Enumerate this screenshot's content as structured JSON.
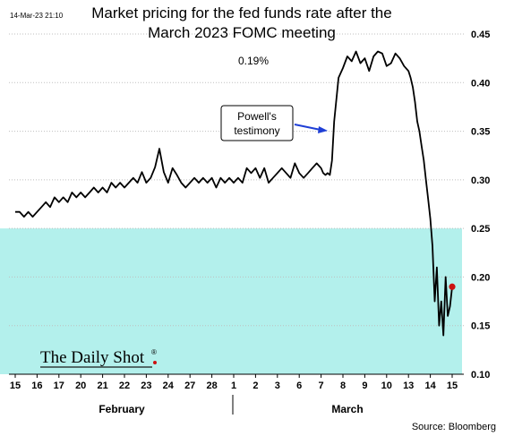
{
  "timestamp": "14-Mar-23 21:10",
  "title_line1": "Market pricing for the fed funds rate after the",
  "title_line2": "March 2023 FOMC meeting",
  "current_value_label": "0.19%",
  "callout_label_line1": "Powell's",
  "callout_label_line2": "testimony",
  "logo_text": "The Daily Shot",
  "logo_mark": "®",
  "source": "Source: Bloomberg",
  "colors": {
    "series": "#000000",
    "band": "#b3f0ec",
    "arrow": "#1f3fd6",
    "last_point": "#cc1111"
  },
  "chart_data": {
    "type": "line",
    "title": "Market pricing for the fed funds rate after the March 2023 FOMC meeting",
    "ylim": [
      0.1,
      0.45
    ],
    "yticks": [
      0.1,
      0.15,
      0.2,
      0.25,
      0.3,
      0.35,
      0.4,
      0.45
    ],
    "ytick_labels": [
      "0.10",
      "0.15",
      "0.20",
      "0.25",
      "0.30",
      "0.35",
      "0.40",
      "0.45"
    ],
    "x_tick_labels": [
      "15",
      "16",
      "17",
      "20",
      "21",
      "22",
      "23",
      "24",
      "27",
      "28",
      "1",
      "2",
      "3",
      "6",
      "7",
      "8",
      "9",
      "10",
      "13",
      "14",
      "15"
    ],
    "month_labels": [
      "February",
      "March"
    ],
    "shaded_band": {
      "from": 0.1,
      "to": 0.25
    },
    "series": [
      {
        "x": [
          0,
          0.2,
          0.4,
          0.6,
          0.8,
          1.0,
          1.2,
          1.4,
          1.6,
          1.8,
          2.0,
          2.2,
          2.4,
          2.6,
          2.8,
          3.0,
          3.2,
          3.4,
          3.6,
          3.8,
          4.0,
          4.2,
          4.4,
          4.6,
          4.8,
          5.0,
          5.2,
          5.4,
          5.6,
          5.8,
          6.0,
          6.2,
          6.4,
          6.6,
          6.8,
          7.0,
          7.2,
          7.4,
          7.6,
          7.8,
          8.0,
          8.2,
          8.4,
          8.6,
          8.8,
          9.0,
          9.2,
          9.4,
          9.6,
          9.8,
          10.0,
          10.2,
          10.4,
          10.6,
          10.8,
          11.0,
          11.2,
          11.4,
          11.6,
          11.8,
          12.0,
          12.2,
          12.4,
          12.6,
          12.8,
          13.0,
          13.2,
          13.4,
          13.6,
          13.8,
          14.0,
          14.1,
          14.2,
          14.3,
          14.4,
          14.5,
          14.6,
          14.8,
          15.0,
          15.2,
          15.4,
          15.6,
          15.8,
          16.0,
          16.2,
          16.4,
          16.6,
          16.8,
          17.0,
          17.2,
          17.4,
          17.6,
          17.8,
          18.0,
          18.1,
          18.2,
          18.3,
          18.4,
          18.5,
          18.6,
          18.7,
          18.8,
          18.9,
          19.0,
          19.1,
          19.2,
          19.3,
          19.4,
          19.5,
          19.6,
          19.7,
          19.8,
          19.9,
          20.0
        ],
        "y": [
          0.267,
          0.267,
          0.262,
          0.267,
          0.262,
          0.267,
          0.272,
          0.277,
          0.272,
          0.282,
          0.277,
          0.282,
          0.277,
          0.287,
          0.282,
          0.287,
          0.282,
          0.287,
          0.292,
          0.287,
          0.292,
          0.287,
          0.297,
          0.292,
          0.297,
          0.292,
          0.297,
          0.302,
          0.297,
          0.308,
          0.297,
          0.302,
          0.313,
          0.332,
          0.308,
          0.297,
          0.312,
          0.305,
          0.297,
          0.292,
          0.297,
          0.302,
          0.297,
          0.302,
          0.297,
          0.302,
          0.292,
          0.302,
          0.297,
          0.302,
          0.297,
          0.302,
          0.297,
          0.312,
          0.307,
          0.312,
          0.302,
          0.312,
          0.297,
          0.302,
          0.307,
          0.312,
          0.307,
          0.302,
          0.317,
          0.307,
          0.302,
          0.307,
          0.312,
          0.317,
          0.312,
          0.307,
          0.305,
          0.307,
          0.305,
          0.32,
          0.36,
          0.405,
          0.415,
          0.427,
          0.422,
          0.432,
          0.42,
          0.425,
          0.412,
          0.427,
          0.432,
          0.43,
          0.417,
          0.42,
          0.43,
          0.425,
          0.417,
          0.412,
          0.405,
          0.395,
          0.38,
          0.36,
          0.35,
          0.335,
          0.32,
          0.3,
          0.28,
          0.26,
          0.232,
          0.175,
          0.21,
          0.15,
          0.175,
          0.14,
          0.2,
          0.16,
          0.17,
          0.19
        ]
      }
    ]
  }
}
